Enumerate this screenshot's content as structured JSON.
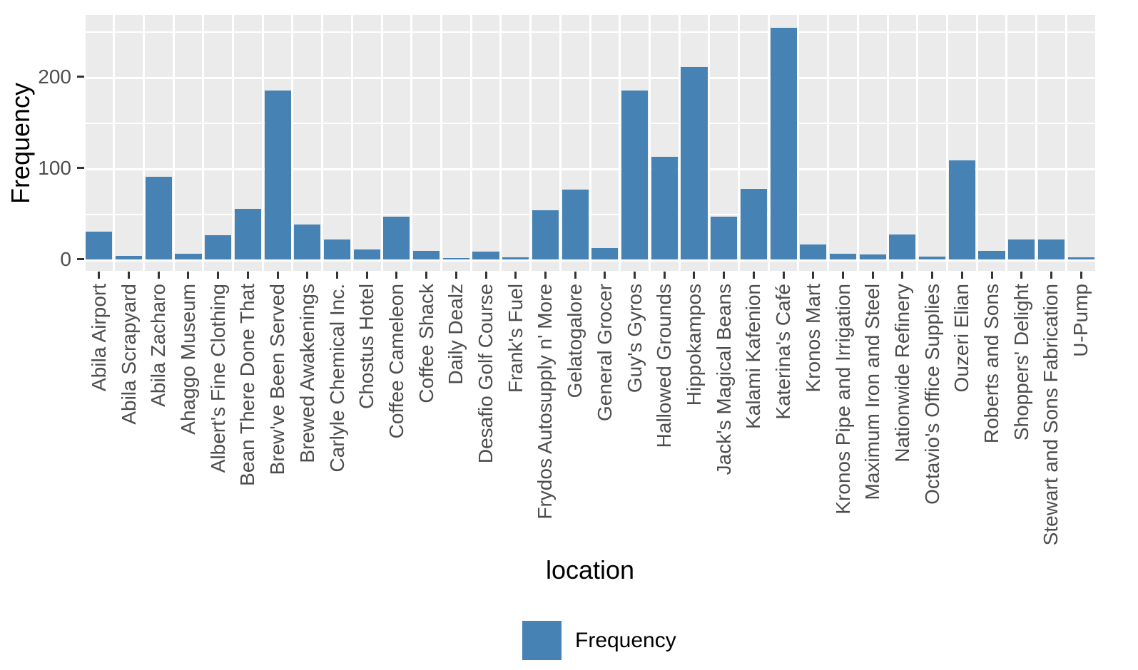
{
  "chart_data": {
    "type": "bar",
    "title": "",
    "xlabel": "location",
    "ylabel": "Frequency",
    "legend": {
      "label": "Frequency",
      "position": "bottom"
    },
    "categories": [
      "Abila Airport",
      "Abila Scrapyard",
      "Abila Zacharo",
      "Ahaggo Museum",
      "Albert's Fine Clothing",
      "Bean There Done That",
      "Brew've Been Served",
      "Brewed Awakenings",
      "Carlyle Chemical Inc.",
      "Chostus Hotel",
      "Coffee Cameleon",
      "Coffee Shack",
      "Daily Dealz",
      "Desafio Golf Course",
      "Frank's Fuel",
      "Frydos Autosupply n' More",
      "Gelatogalore",
      "General Grocer",
      "Guy's Gyros",
      "Hallowed Grounds",
      "Hippokampos",
      "Jack's Magical Beans",
      "Kalami Kafenion",
      "Katerina's Café",
      "Kronos Mart",
      "Kronos Pipe and Irrigation",
      "Maximum Iron and Steel",
      "Nationwide Refinery",
      "Octavio's Office Supplies",
      "Ouzeri Elian",
      "Roberts and Sons",
      "Shoppers' Delight",
      "Stewart and Sons Fabrication",
      "U-Pump"
    ],
    "values": [
      30,
      4,
      90,
      6,
      26,
      55,
      185,
      38,
      22,
      11,
      47,
      9,
      1,
      8,
      2,
      54,
      76,
      12,
      185,
      112,
      211,
      47,
      77,
      254,
      16,
      6,
      5,
      27,
      3,
      108,
      9,
      22,
      22,
      2
    ],
    "y_ticks": [
      0,
      100,
      200
    ],
    "y_minor_ticks": [
      50,
      150,
      250
    ],
    "ylim": [
      -12.75,
      267.75
    ],
    "grid": "on",
    "bar_width_ratio": 0.89,
    "bar_color": "#4682B4",
    "panel_bg": "#EBEBEB",
    "grid_color": "#FFFFFF",
    "tick_color": "#333333",
    "tick_label_color": "#4D4D4D",
    "axis_title_color": "#000000"
  }
}
